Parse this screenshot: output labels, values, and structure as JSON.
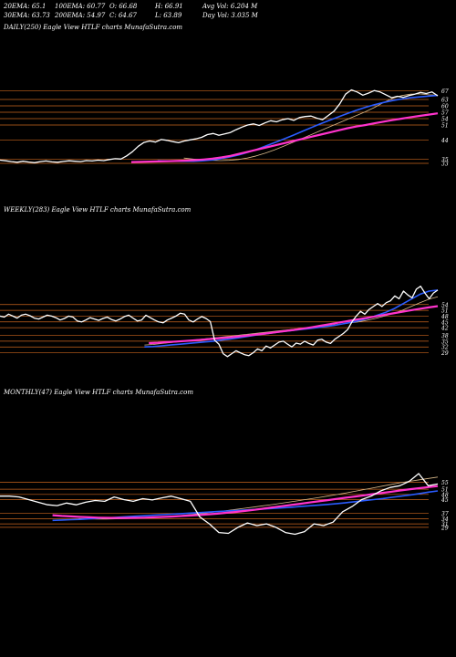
{
  "header": {
    "row1": [
      "20EMA: 65.1",
      "100EMA: 60.77",
      "O: 66.68",
      "H: 66.91",
      "Avg Vol: 6.204 M"
    ],
    "row2": [
      "30EMA: 63.73",
      "200EMA: 54.97",
      "C: 64.67",
      "L: 63.89",
      "Day Vol: 3.035 M"
    ]
  },
  "panels": {
    "daily_title": "DAILY(250) Eagle   View  HTLF charts MunafaSutra.com",
    "weekly_title": "WEEKLY(283) Eagle   View  HTLF charts MunafaSutra.com",
    "monthly_title": "MONTHLY(47) Eagle   View  HTLF charts MunafaSutra.com"
  },
  "colors": {
    "price": "#ffffff",
    "ema_blue": "#2a5cff",
    "ema_pink": "#ff33cc",
    "grid_orange": "#c8651e",
    "ema_tan": "#d8b88a"
  },
  "chart_data": [
    {
      "type": "line",
      "title": "DAILY(250) Eagle   View  HTLF charts MunafaSutra.com",
      "price_levels": [
        67,
        63,
        60,
        57,
        54,
        51,
        44,
        35,
        33
      ],
      "ylim": [
        30,
        72
      ],
      "series": [
        {
          "values": [
            34.5,
            34.2,
            33.8,
            33.5,
            34,
            33.6,
            33.3,
            33.8,
            34.1,
            33.7,
            33.5,
            33.9,
            34.2,
            34,
            33.8,
            34.3,
            34.1,
            34.5,
            34.3,
            34.8,
            35.2,
            35,
            36.5,
            38.5,
            41,
            42.8,
            43.5,
            43,
            44.2,
            43.8,
            43.2,
            42.7,
            43.5,
            44,
            44.5,
            45.2,
            46.5,
            47,
            46.2,
            46.8,
            47.5,
            48.8,
            50,
            51,
            51.5,
            50.8,
            52,
            53,
            52.5,
            53.5,
            54,
            53.2,
            54.5,
            55,
            55.2,
            54.2,
            53.5,
            55.5,
            57.5,
            61,
            65.5,
            67.5,
            66.5,
            65,
            66,
            67.2,
            66.5,
            65.2,
            63.8,
            64.5,
            64,
            64.8,
            65.5,
            66.3,
            65.8,
            66.5,
            64.7
          ]
        },
        {
          "values": [
            33.6,
            33.7,
            33.8,
            33.9,
            34,
            34.1,
            34.3,
            34.5,
            34.8,
            35.2,
            35.8,
            36.5,
            37.5,
            38.5,
            39.5,
            40.5,
            41.5,
            42.5,
            43.5,
            44.5,
            45.5,
            46.5,
            47.5,
            48.5,
            49.5,
            50.3,
            51,
            51.8,
            52.6,
            53.3,
            54,
            54.7,
            55.3,
            55.9,
            56.5
          ]
        },
        {
          "values": [
            34.2,
            34.1,
            34,
            34,
            34,
            34.2,
            34.6,
            35.2,
            36,
            37,
            38.2,
            39.6,
            41.2,
            42.8,
            44.5,
            46.2,
            48,
            49.8,
            51.5,
            53.2,
            54.8,
            56.4,
            57.9,
            59.3,
            60.5,
            61.6,
            62.5,
            63.2,
            63.8,
            64.2,
            64.6,
            64.9
          ]
        },
        {
          "values": [
            35.5,
            35,
            34.6,
            34.4,
            34.3,
            34.4,
            34.8,
            35.5,
            36.5,
            37.8,
            39.3,
            41,
            42.8,
            44.6,
            46.4,
            48.2,
            50,
            51.8,
            53.6,
            55.4,
            57.2,
            59.2,
            61.5,
            63.5,
            64.8,
            65.5,
            65.6,
            65.2,
            65
          ]
        }
      ]
    },
    {
      "type": "line",
      "title": "WEEKLY(283) Eagle   View  HTLF charts MunafaSutra.com",
      "price_levels": [
        54,
        51,
        48,
        45,
        42,
        38,
        35,
        32,
        29
      ],
      "ylim": [
        25,
        70
      ],
      "series": [
        {
          "values": [
            48,
            47.5,
            49,
            48,
            47,
            48.5,
            49,
            48.2,
            47,
            46.5,
            47.5,
            48.5,
            48,
            47.2,
            46,
            46.8,
            48,
            47.5,
            45.5,
            45,
            46,
            47.2,
            46.5,
            45.8,
            46.8,
            47.5,
            46.2,
            45.5,
            46.5,
            47.8,
            48.5,
            47,
            45.5,
            46,
            48.5,
            47.2,
            46,
            45,
            44.5,
            46,
            47,
            48,
            49.5,
            49,
            46,
            45,
            46.5,
            47.8,
            46.8,
            45.2,
            35.5,
            33.5,
            28.5,
            27,
            28.5,
            30,
            29,
            28,
            27.5,
            29,
            31,
            30,
            32.5,
            31.5,
            33,
            34.5,
            35,
            33.5,
            32,
            34,
            33.5,
            35,
            33.8,
            33,
            35.5,
            36,
            34.5,
            33.8,
            36,
            37.5,
            39,
            41,
            45,
            48,
            50.5,
            49,
            51.5,
            53,
            54.5,
            53,
            55,
            56,
            58.5,
            57,
            61,
            59,
            57.5,
            62,
            63.5,
            60,
            57,
            60,
            61.5
          ]
        },
        {
          "values": [
            34,
            34.2,
            34.5,
            34.8,
            35.1,
            35.4,
            35.8,
            36.2,
            36.6,
            37,
            37.5,
            38,
            38.5,
            39,
            39.6,
            40.2,
            40.8,
            41.5,
            42.2,
            43,
            43.8,
            44.6,
            45.4,
            46.2,
            47,
            47.8,
            48.6,
            49.4,
            50.2,
            51,
            51.8,
            52.5,
            53.2
          ]
        },
        {
          "values": [
            32,
            32.2,
            32.6,
            33,
            33.4,
            33.8,
            34.2,
            34.6,
            35,
            35.6,
            36.2,
            36.8,
            37.5,
            38.2,
            38.8,
            39.4,
            40,
            40.5,
            41,
            41.5,
            42,
            42.6,
            43.2,
            44,
            44.8,
            45.8,
            47,
            48.5,
            50,
            52,
            54.5,
            57,
            59.5,
            61,
            61.5
          ]
        },
        {
          "values": [
            33,
            33.3,
            33.8,
            34.3,
            34.8,
            35.3,
            35.8,
            36.3,
            36.8,
            37.3,
            37.8,
            38.3,
            38.8,
            39.3,
            39.8,
            40.3,
            40.8,
            41.3,
            41.8,
            42.3,
            42.8,
            43.3,
            43.8,
            44.4,
            45,
            45.8,
            46.8,
            48,
            49.4,
            51,
            53,
            55,
            56.8,
            58
          ]
        }
      ]
    },
    {
      "type": "line",
      "title": "MONTHLY(47) Eagle   View  HTLF charts MunafaSutra.com",
      "price_levels": [
        55,
        51,
        48,
        45,
        37,
        34,
        31,
        29
      ],
      "ylim": [
        20,
        70
      ],
      "series": [
        {
          "values": [
            47,
            47,
            46.5,
            45,
            43.5,
            42,
            41.5,
            43,
            42,
            43.5,
            44.5,
            44,
            46.5,
            45,
            44,
            45.5,
            44.8,
            46,
            47,
            45.5,
            44,
            35,
            31,
            26,
            25.5,
            29,
            31.5,
            30,
            31,
            29,
            26,
            25,
            26.5,
            31,
            30,
            32,
            38,
            41,
            45,
            47,
            50,
            52,
            53,
            55.5,
            60,
            53,
            54
          ]
        },
        {
          "values": [
            36,
            35.6,
            35.3,
            35,
            34.8,
            34.6,
            34.5,
            34.4,
            34.4,
            34.5,
            34.6,
            34.8,
            35,
            35.2,
            35.5,
            35.8,
            36.1,
            36.5,
            36.9,
            37.4,
            37.9,
            38.5,
            39.1,
            39.8,
            40.5,
            41.2,
            41.9,
            42.6,
            43.3,
            44,
            44.7,
            45.4,
            46.1,
            46.8,
            47.5,
            48.2,
            48.9,
            49.6,
            50.3,
            51,
            51.6,
            52.2,
            52.8
          ]
        },
        {
          "values": [
            33,
            33.2,
            33.4,
            33.6,
            33.9,
            34.2,
            34.5,
            34.8,
            35.1,
            35.4,
            35.7,
            36,
            36.3,
            36.6,
            36.9,
            37.2,
            37.5,
            37.8,
            38.1,
            38.4,
            38.7,
            39,
            39.3,
            39.6,
            39.9,
            40.2,
            40.6,
            41,
            41.4,
            41.8,
            42.2,
            42.7,
            43.2,
            43.8,
            44.4,
            45,
            45.6,
            46.3,
            47,
            47.7,
            48.5,
            49.3,
            50
          ]
        },
        {
          "values": [
            34,
            33.9,
            33.8,
            33.8,
            33.9,
            34,
            34.2,
            34.4,
            34.7,
            35,
            35.4,
            35.8,
            36.3,
            36.8,
            37.4,
            38,
            38.6,
            39.3,
            40,
            40.7,
            41.4,
            42.1,
            42.9,
            43.7,
            44.5,
            45.3,
            46.1,
            47,
            47.9,
            48.8,
            49.8,
            50.8,
            51.8,
            52.8,
            53.8,
            54.8,
            55.6,
            56.4,
            57.2,
            58
          ]
        }
      ]
    }
  ]
}
